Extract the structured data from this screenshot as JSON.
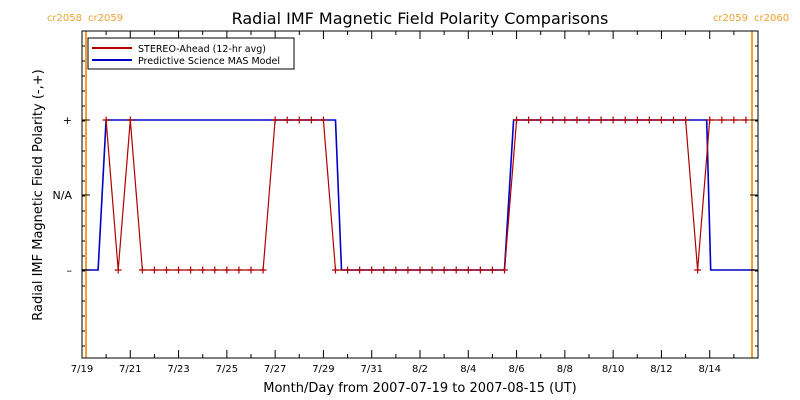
{
  "chart_data": {
    "type": "line",
    "title": "Radial IMF Magnetic Field Polarity Comparisons",
    "xlabel": "Month/Day from 2007-07-19 to 2007-08-15 (UT)",
    "ylabel": "Radial IMF Magnetic Field Polarity (-,+)",
    "x_range": [
      "2007-07-19",
      "2007-08-16"
    ],
    "x_ticks": [
      "7/19",
      "7/21",
      "7/23",
      "7/25",
      "7/27",
      "7/29",
      "7/31",
      "8/2",
      "8/4",
      "8/6",
      "8/8",
      "8/10",
      "8/12",
      "8/14"
    ],
    "y_ticks": [
      "+",
      "N/A",
      "–"
    ],
    "grid": false,
    "legend_position": "top-left",
    "carrington_markers": [
      {
        "date": "2007-07-19",
        "left_label": "cr2058",
        "right_label": "cr2059",
        "color": "#f0a030"
      },
      {
        "date": "2007-08-16",
        "left_label": "cr2059",
        "right_label": "cr2060",
        "color": "#f0a030"
      }
    ],
    "series": [
      {
        "name": "STEREO-Ahead (12-hr avg)",
        "color": "#b00000",
        "marker": "plus",
        "points": [
          {
            "x": "2007-07-20T00:00",
            "y": "+"
          },
          {
            "x": "2007-07-20T12:00",
            "y": "–"
          },
          {
            "x": "2007-07-21T00:00",
            "y": "+"
          },
          {
            "x": "2007-07-21T12:00",
            "y": "–"
          },
          {
            "x": "2007-07-22T00:00",
            "y": "–"
          },
          {
            "x": "2007-07-22T12:00",
            "y": "–"
          },
          {
            "x": "2007-07-23T00:00",
            "y": "–"
          },
          {
            "x": "2007-07-23T12:00",
            "y": "–"
          },
          {
            "x": "2007-07-24T00:00",
            "y": "–"
          },
          {
            "x": "2007-07-24T12:00",
            "y": "–"
          },
          {
            "x": "2007-07-25T00:00",
            "y": "–"
          },
          {
            "x": "2007-07-25T12:00",
            "y": "–"
          },
          {
            "x": "2007-07-26T00:00",
            "y": "–"
          },
          {
            "x": "2007-07-26T12:00",
            "y": "–"
          },
          {
            "x": "2007-07-27T00:00",
            "y": "+"
          },
          {
            "x": "2007-07-27T12:00",
            "y": "+"
          },
          {
            "x": "2007-07-28T00:00",
            "y": "+"
          },
          {
            "x": "2007-07-28T12:00",
            "y": "+"
          },
          {
            "x": "2007-07-29T00:00",
            "y": "+"
          },
          {
            "x": "2007-07-29T12:00",
            "y": "–"
          },
          {
            "x": "2007-07-30T00:00",
            "y": "–"
          },
          {
            "x": "2007-07-30T12:00",
            "y": "–"
          },
          {
            "x": "2007-07-31T00:00",
            "y": "–"
          },
          {
            "x": "2007-07-31T12:00",
            "y": "–"
          },
          {
            "x": "2007-08-01T00:00",
            "y": "–"
          },
          {
            "x": "2007-08-01T12:00",
            "y": "–"
          },
          {
            "x": "2007-08-02T00:00",
            "y": "–"
          },
          {
            "x": "2007-08-02T12:00",
            "y": "–"
          },
          {
            "x": "2007-08-03T00:00",
            "y": "–"
          },
          {
            "x": "2007-08-03T12:00",
            "y": "–"
          },
          {
            "x": "2007-08-04T00:00",
            "y": "–"
          },
          {
            "x": "2007-08-04T12:00",
            "y": "–"
          },
          {
            "x": "2007-08-05T00:00",
            "y": "–"
          },
          {
            "x": "2007-08-05T12:00",
            "y": "–"
          },
          {
            "x": "2007-08-06T00:00",
            "y": "+"
          },
          {
            "x": "2007-08-06T12:00",
            "y": "+"
          },
          {
            "x": "2007-08-07T00:00",
            "y": "+"
          },
          {
            "x": "2007-08-07T12:00",
            "y": "+"
          },
          {
            "x": "2007-08-08T00:00",
            "y": "+"
          },
          {
            "x": "2007-08-08T12:00",
            "y": "+"
          },
          {
            "x": "2007-08-09T00:00",
            "y": "+"
          },
          {
            "x": "2007-08-09T12:00",
            "y": "+"
          },
          {
            "x": "2007-08-10T00:00",
            "y": "+"
          },
          {
            "x": "2007-08-10T12:00",
            "y": "+"
          },
          {
            "x": "2007-08-11T00:00",
            "y": "+"
          },
          {
            "x": "2007-08-11T12:00",
            "y": "+"
          },
          {
            "x": "2007-08-12T00:00",
            "y": "+"
          },
          {
            "x": "2007-08-12T12:00",
            "y": "+"
          },
          {
            "x": "2007-08-13T00:00",
            "y": "+"
          },
          {
            "x": "2007-08-13T12:00",
            "y": "–"
          },
          {
            "x": "2007-08-14T00:00",
            "y": "+"
          },
          {
            "x": "2007-08-14T12:00",
            "y": "+"
          },
          {
            "x": "2007-08-15T00:00",
            "y": "+"
          },
          {
            "x": "2007-08-15T12:00",
            "y": "+"
          }
        ]
      },
      {
        "name": "Predictive Science MAS Model",
        "color": "#0000c8",
        "marker": "none",
        "points": [
          {
            "x": "2007-07-19T00:00",
            "y": "–"
          },
          {
            "x": "2007-07-19T16:00",
            "y": "–"
          },
          {
            "x": "2007-07-20T00:00",
            "y": "+"
          },
          {
            "x": "2007-07-29T12:00",
            "y": "+"
          },
          {
            "x": "2007-07-29T18:00",
            "y": "–"
          },
          {
            "x": "2007-08-05T12:00",
            "y": "–"
          },
          {
            "x": "2007-08-05T21:00",
            "y": "+"
          },
          {
            "x": "2007-08-13T21:00",
            "y": "+"
          },
          {
            "x": "2007-08-14T01:00",
            "y": "–"
          },
          {
            "x": "2007-08-15T21:00",
            "y": "–"
          }
        ]
      }
    ]
  }
}
